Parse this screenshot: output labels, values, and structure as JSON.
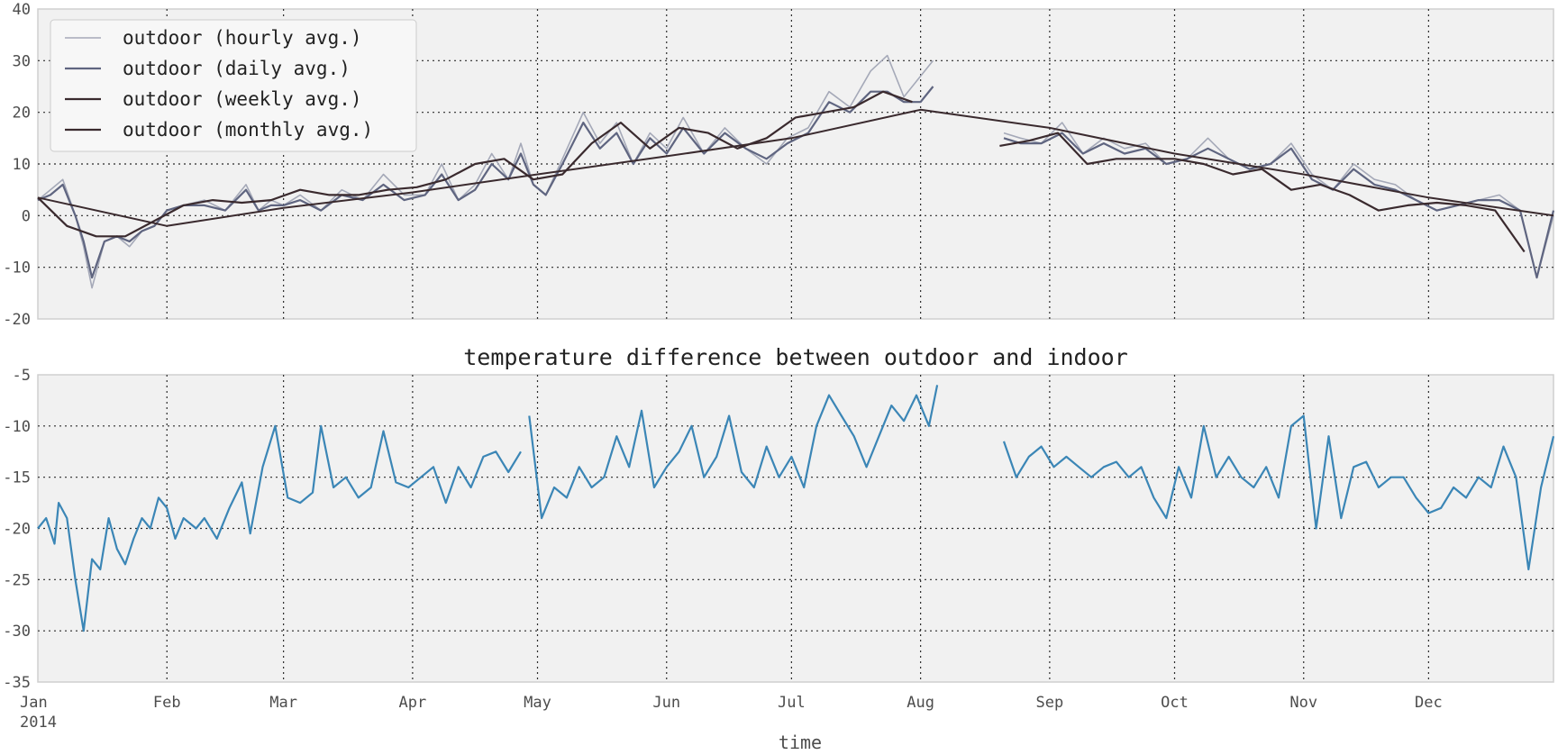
{
  "chart_data": [
    {
      "type": "line",
      "title": "",
      "xlabel": "",
      "ylabel": "",
      "ylim": [
        -20,
        40
      ],
      "yticks": [
        -20,
        -10,
        0,
        10,
        20,
        30,
        40
      ],
      "xlim": [
        "2014-01-01",
        "2014-12-31"
      ],
      "grid": true,
      "legend_position": "top-left",
      "colors": {
        "hourly": "#a5a9b8",
        "daily": "#5f6580",
        "weekly": "#3a2a2e",
        "monthly": "#3a2a2e"
      },
      "series": [
        {
          "name": "outdoor (hourly avg.)",
          "x": [
            "2014-01-01",
            "2014-01-04",
            "2014-01-07",
            "2014-01-10",
            "2014-01-12",
            "2014-01-14",
            "2014-01-17",
            "2014-01-20",
            "2014-01-23",
            "2014-01-26",
            "2014-01-29",
            "2014-02-01",
            "2014-02-05",
            "2014-02-10",
            "2014-02-15",
            "2014-02-20",
            "2014-02-23",
            "2014-02-26",
            "2014-03-01",
            "2014-03-05",
            "2014-03-10",
            "2014-03-15",
            "2014-03-20",
            "2014-03-25",
            "2014-03-30",
            "2014-04-04",
            "2014-04-08",
            "2014-04-12",
            "2014-04-16",
            "2014-04-20",
            "2014-04-24",
            "2014-04-27",
            "2014-04-30",
            "2014-05-03",
            "2014-05-07",
            "2014-05-12",
            "2014-05-16",
            "2014-05-20",
            "2014-05-24",
            "2014-05-28",
            "2014-06-01",
            "2014-06-05",
            "2014-06-10",
            "2014-06-15",
            "2014-06-20",
            "2014-06-25",
            "2014-06-30",
            "2014-07-05",
            "2014-07-10",
            "2014-07-15",
            "2014-07-20",
            "2014-07-24",
            "2014-07-28",
            "2014-08-01",
            "2014-08-04",
            null,
            "2014-08-21",
            "2014-08-25",
            "2014-08-30",
            "2014-09-04",
            "2014-09-09",
            "2014-09-14",
            "2014-09-19",
            "2014-09-24",
            "2014-09-29",
            "2014-10-04",
            "2014-10-09",
            "2014-10-14",
            "2014-10-19",
            "2014-10-24",
            "2014-10-29",
            "2014-11-03",
            "2014-11-08",
            "2014-11-13",
            "2014-11-18",
            "2014-11-23",
            "2014-11-28",
            "2014-12-03",
            "2014-12-08",
            "2014-12-13",
            "2014-12-18",
            "2014-12-23",
            "2014-12-27",
            "2014-12-31"
          ],
          "y": [
            3,
            5,
            7,
            0,
            -6,
            -14,
            -5,
            -4,
            -6,
            -3,
            -2,
            1,
            2,
            3,
            1,
            6,
            1,
            3,
            2,
            4,
            1,
            5,
            3,
            8,
            4,
            4,
            10,
            3,
            6,
            12,
            7,
            14,
            6,
            4,
            11,
            20,
            14,
            18,
            10,
            16,
            13,
            19,
            12,
            17,
            13,
            10,
            15,
            17,
            24,
            21,
            28,
            31,
            23,
            27,
            30,
            null,
            16,
            15,
            14,
            18,
            12,
            15,
            13,
            14,
            10,
            11,
            15,
            11,
            9,
            10,
            14,
            8,
            5,
            10,
            7,
            6,
            3,
            1,
            2,
            3,
            4,
            1,
            -12,
            0
          ]
        },
        {
          "name": "outdoor (daily avg.)",
          "x": [
            "2014-01-01",
            "2014-01-04",
            "2014-01-07",
            "2014-01-10",
            "2014-01-12",
            "2014-01-14",
            "2014-01-17",
            "2014-01-20",
            "2014-01-23",
            "2014-01-26",
            "2014-01-29",
            "2014-02-01",
            "2014-02-05",
            "2014-02-10",
            "2014-02-15",
            "2014-02-20",
            "2014-02-23",
            "2014-02-26",
            "2014-03-01",
            "2014-03-05",
            "2014-03-10",
            "2014-03-15",
            "2014-03-20",
            "2014-03-25",
            "2014-03-30",
            "2014-04-04",
            "2014-04-08",
            "2014-04-12",
            "2014-04-16",
            "2014-04-20",
            "2014-04-24",
            "2014-04-27",
            "2014-04-30",
            "2014-05-03",
            "2014-05-07",
            "2014-05-12",
            "2014-05-16",
            "2014-05-20",
            "2014-05-24",
            "2014-05-28",
            "2014-06-01",
            "2014-06-05",
            "2014-06-10",
            "2014-06-15",
            "2014-06-20",
            "2014-06-25",
            "2014-06-30",
            "2014-07-05",
            "2014-07-10",
            "2014-07-15",
            "2014-07-20",
            "2014-07-24",
            "2014-07-28",
            "2014-08-01",
            "2014-08-04",
            null,
            "2014-08-21",
            "2014-08-25",
            "2014-08-30",
            "2014-09-04",
            "2014-09-09",
            "2014-09-14",
            "2014-09-19",
            "2014-09-24",
            "2014-09-29",
            "2014-10-04",
            "2014-10-09",
            "2014-10-14",
            "2014-10-19",
            "2014-10-24",
            "2014-10-29",
            "2014-11-03",
            "2014-11-08",
            "2014-11-13",
            "2014-11-18",
            "2014-11-23",
            "2014-11-28",
            "2014-12-03",
            "2014-12-08",
            "2014-12-13",
            "2014-12-18",
            "2014-12-23",
            "2014-12-27",
            "2014-12-31"
          ],
          "y": [
            3,
            4,
            6,
            0,
            -5,
            -12,
            -5,
            -4,
            -5,
            -3,
            -2,
            1,
            2,
            2,
            1,
            5,
            1,
            2,
            2,
            3,
            1,
            4,
            3,
            6,
            3,
            4,
            8,
            3,
            5,
            10,
            7,
            12,
            6,
            4,
            10,
            18,
            13,
            16,
            10,
            15,
            12,
            17,
            12,
            16,
            13,
            11,
            14,
            16,
            22,
            20,
            24,
            24,
            22,
            22,
            25,
            null,
            15,
            14,
            14,
            16,
            12,
            14,
            12,
            13,
            10,
            11,
            13,
            11,
            9,
            10,
            13,
            7,
            5,
            9,
            6,
            5,
            3,
            1,
            2,
            3,
            3,
            1,
            -12,
            1
          ]
        },
        {
          "name": "outdoor (weekly avg.)",
          "x": [
            "2014-01-01",
            "2014-01-08",
            "2014-01-15",
            "2014-01-22",
            "2014-01-29",
            "2014-02-05",
            "2014-02-12",
            "2014-02-19",
            "2014-02-26",
            "2014-03-05",
            "2014-03-12",
            "2014-03-19",
            "2014-03-26",
            "2014-04-02",
            "2014-04-09",
            "2014-04-16",
            "2014-04-23",
            "2014-04-30",
            "2014-05-07",
            "2014-05-14",
            "2014-05-21",
            "2014-05-28",
            "2014-06-04",
            "2014-06-11",
            "2014-06-18",
            "2014-06-25",
            "2014-07-02",
            "2014-07-09",
            "2014-07-16",
            "2014-07-23",
            "2014-07-30",
            null,
            "2014-08-20",
            "2014-08-27",
            "2014-09-03",
            "2014-09-10",
            "2014-09-17",
            "2014-09-24",
            "2014-10-01",
            "2014-10-08",
            "2014-10-15",
            "2014-10-22",
            "2014-10-29",
            "2014-11-05",
            "2014-11-12",
            "2014-11-19",
            "2014-11-26",
            "2014-12-03",
            "2014-12-10",
            "2014-12-17",
            "2014-12-24"
          ],
          "y": [
            3.5,
            -2,
            -4,
            -4,
            -1,
            2,
            3,
            2.5,
            3,
            5,
            4,
            4,
            5,
            5.5,
            7,
            10,
            11,
            7,
            8,
            14,
            18,
            13,
            17,
            16,
            13,
            15,
            19,
            20,
            21,
            24,
            22,
            null,
            13.5,
            14.5,
            16,
            10,
            11,
            11,
            11,
            10,
            8,
            9,
            5,
            6,
            4,
            1,
            2,
            2.5,
            2,
            1,
            -7
          ]
        },
        {
          "name": "outdoor (monthly avg.)",
          "x": [
            "2014-01-01",
            "2014-02-01",
            "2014-03-01",
            "2014-04-01",
            "2014-05-01",
            "2014-06-01",
            "2014-07-01",
            "2014-08-01",
            "2014-09-01",
            "2014-10-01",
            "2014-11-01",
            "2014-12-01",
            "2014-12-31"
          ],
          "y": [
            3.5,
            -2,
            1.5,
            4.5,
            8,
            11.5,
            15,
            20.5,
            17,
            12,
            8,
            3.5,
            0
          ]
        }
      ]
    },
    {
      "type": "line",
      "title": "temperature difference between outdoor and indoor",
      "xlabel": "time",
      "ylabel": "",
      "ylim": [
        -35,
        -5
      ],
      "yticks": [
        -35,
        -30,
        -25,
        -20,
        -15,
        -10,
        -5
      ],
      "xlim": [
        "2014-01-01",
        "2014-12-31"
      ],
      "grid": true,
      "color": "#3b86b6",
      "tick_labels_x": [
        "Jan",
        "Feb",
        "Mar",
        "Apr",
        "May",
        "Jun",
        "Jul",
        "Aug",
        "Sep",
        "Oct",
        "Nov",
        "Dec"
      ],
      "tick_year_label": "2014",
      "series": [
        {
          "name": "",
          "x": [
            "2014-01-01",
            "2014-01-03",
            "2014-01-05",
            "2014-01-06",
            "2014-01-08",
            "2014-01-10",
            "2014-01-12",
            "2014-01-14",
            "2014-01-16",
            "2014-01-18",
            "2014-01-20",
            "2014-01-22",
            "2014-01-24",
            "2014-01-26",
            "2014-01-28",
            "2014-01-30",
            "2014-02-01",
            "2014-02-03",
            "2014-02-05",
            "2014-02-08",
            "2014-02-10",
            "2014-02-13",
            "2014-02-16",
            "2014-02-19",
            "2014-02-21",
            "2014-02-24",
            "2014-02-27",
            "2014-03-02",
            "2014-03-05",
            "2014-03-08",
            "2014-03-10",
            "2014-03-13",
            "2014-03-16",
            "2014-03-19",
            "2014-03-22",
            "2014-03-25",
            "2014-03-28",
            "2014-03-31",
            "2014-04-03",
            "2014-04-06",
            "2014-04-09",
            "2014-04-12",
            "2014-04-15",
            "2014-04-18",
            "2014-04-21",
            "2014-04-24",
            "2014-04-27",
            null,
            "2014-04-29",
            "2014-05-02",
            "2014-05-05",
            "2014-05-08",
            "2014-05-11",
            "2014-05-14",
            "2014-05-17",
            "2014-05-20",
            "2014-05-23",
            "2014-05-26",
            "2014-05-29",
            "2014-06-01",
            "2014-06-04",
            "2014-06-07",
            "2014-06-10",
            "2014-06-13",
            "2014-06-16",
            "2014-06-19",
            "2014-06-22",
            "2014-06-25",
            "2014-06-28",
            "2014-07-01",
            "2014-07-04",
            "2014-07-07",
            "2014-07-10",
            "2014-07-13",
            "2014-07-16",
            "2014-07-19",
            "2014-07-22",
            "2014-07-25",
            "2014-07-28",
            "2014-07-31",
            "2014-08-03",
            "2014-08-05",
            null,
            "2014-08-21",
            "2014-08-24",
            "2014-08-27",
            "2014-08-30",
            "2014-09-02",
            "2014-09-05",
            "2014-09-08",
            "2014-09-11",
            "2014-09-14",
            "2014-09-17",
            "2014-09-20",
            "2014-09-23",
            "2014-09-26",
            "2014-09-29",
            "2014-10-02",
            "2014-10-05",
            "2014-10-08",
            "2014-10-11",
            "2014-10-14",
            "2014-10-17",
            "2014-10-20",
            "2014-10-23",
            "2014-10-26",
            "2014-10-29",
            "2014-11-01",
            "2014-11-04",
            "2014-11-07",
            "2014-11-10",
            "2014-11-13",
            "2014-11-16",
            "2014-11-19",
            "2014-11-22",
            "2014-11-25",
            "2014-11-28",
            "2014-12-01",
            "2014-12-04",
            "2014-12-07",
            "2014-12-10",
            "2014-12-13",
            "2014-12-16",
            "2014-12-19",
            "2014-12-22",
            "2014-12-25",
            "2014-12-28",
            "2014-12-31"
          ],
          "y": [
            -20,
            -19,
            -21.5,
            -17.5,
            -19,
            -25,
            -30,
            -23,
            -24,
            -19,
            -22,
            -23.5,
            -21,
            -19,
            -20,
            -17,
            -18,
            -21,
            -19,
            -20,
            -19,
            -21,
            -18,
            -15.5,
            -20.5,
            -14,
            -10,
            -17,
            -17.5,
            -16.5,
            -10,
            -16,
            -15,
            -17,
            -16,
            -10.5,
            -15.5,
            -16,
            -15,
            -14,
            -17.5,
            -14,
            -16,
            -13,
            -12.5,
            -14.5,
            -12.5,
            null,
            -9,
            -19,
            -16,
            -17,
            -14,
            -16,
            -15,
            -11,
            -14,
            -8.5,
            -16,
            -14,
            -12.5,
            -10,
            -15,
            -13,
            -9,
            -14.5,
            -16,
            -12,
            -15,
            -13,
            -16,
            -10,
            -7,
            -9,
            -11,
            -14,
            -11,
            -8,
            -9.5,
            -7,
            -10,
            -6,
            null,
            -11.5,
            -15,
            -13,
            -12,
            -14,
            -13,
            -14,
            -15,
            -14,
            -13.5,
            -15,
            -14,
            -17,
            -19,
            -14,
            -17,
            -10,
            -15,
            -13,
            -15,
            -16,
            -14,
            -17,
            -10,
            -9,
            -20,
            -11,
            -19,
            -14,
            -13.5,
            -16,
            -15,
            -15,
            -17,
            -18.5,
            -18,
            -16,
            -17,
            -15,
            -16,
            -12,
            -15,
            -24,
            -16,
            -11
          ]
        }
      ]
    }
  ]
}
